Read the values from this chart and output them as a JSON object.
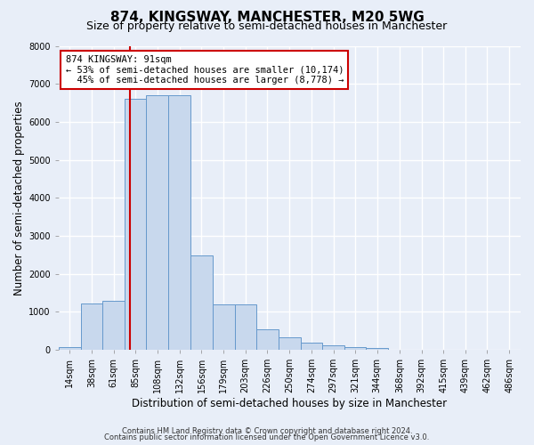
{
  "title": "874, KINGSWAY, MANCHESTER, M20 5WG",
  "subtitle": "Size of property relative to semi-detached houses in Manchester",
  "bar_values": [
    70,
    1230,
    1290,
    6600,
    6700,
    6700,
    2480,
    1190,
    1190,
    540,
    320,
    180,
    110,
    80,
    40,
    0,
    0,
    0,
    0,
    0
  ],
  "bin_labels": [
    "14sqm",
    "38sqm",
    "61sqm",
    "85sqm",
    "108sqm",
    "132sqm",
    "156sqm",
    "179sqm",
    "203sqm",
    "226sqm",
    "250sqm",
    "274sqm",
    "297sqm",
    "321sqm",
    "344sqm",
    "368sqm",
    "392sqm",
    "415sqm",
    "439sqm",
    "462sqm",
    "486sqm"
  ],
  "bin_edges": [
    14,
    38,
    61,
    85,
    108,
    132,
    156,
    179,
    203,
    226,
    250,
    274,
    297,
    321,
    344,
    368,
    392,
    415,
    439,
    462,
    486
  ],
  "bar_color": "#c8d8ed",
  "bar_edge_color": "#6699cc",
  "property_size": 91,
  "vline_color": "#cc0000",
  "ann_line1": "874 KINGSWAY: 91sqm",
  "ann_line2": "← 53% of semi-detached houses are smaller (10,174)",
  "ann_line3": "  45% of semi-detached houses are larger (8,778) →",
  "annotation_box_color": "#ffffff",
  "annotation_box_edge": "#cc0000",
  "xlabel": "Distribution of semi-detached houses by size in Manchester",
  "ylabel": "Number of semi-detached properties",
  "ylim": [
    0,
    8000
  ],
  "yticks": [
    0,
    1000,
    2000,
    3000,
    4000,
    5000,
    6000,
    7000,
    8000
  ],
  "footer1": "Contains HM Land Registry data © Crown copyright and database right 2024.",
  "footer2": "Contains public sector information licensed under the Open Government Licence v3.0.",
  "bg_color": "#e8eef8",
  "grid_color": "#ffffff",
  "title_fontsize": 11,
  "subtitle_fontsize": 9,
  "axis_label_fontsize": 8.5,
  "tick_fontsize": 7,
  "footer_fontsize": 6
}
